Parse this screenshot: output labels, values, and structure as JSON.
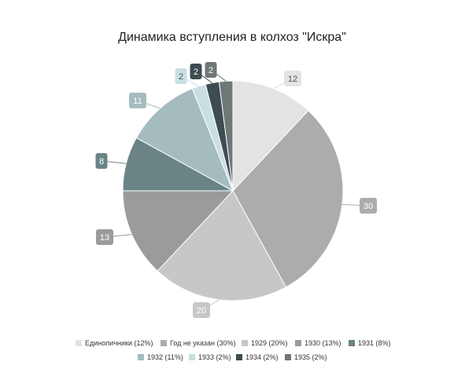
{
  "chart_data": {
    "type": "pie",
    "title": "Динамика вступления в колхоз \"Искра\"",
    "slices": [
      {
        "name": "Единоличники",
        "value": 12,
        "percent": "12%",
        "color": "#e3e3e3",
        "label_text_color": "#555555"
      },
      {
        "name": "Год не указан",
        "value": 30,
        "percent": "30%",
        "color": "#acacac",
        "label_text_color": "#ffffff"
      },
      {
        "name": "1929",
        "value": 20,
        "percent": "20%",
        "color": "#c7c7c7",
        "label_text_color": "#ffffff"
      },
      {
        "name": "1930",
        "value": 13,
        "percent": "13%",
        "color": "#9b9b9b",
        "label_text_color": "#ffffff"
      },
      {
        "name": "1931",
        "value": 8,
        "percent": "8%",
        "color": "#6a8485",
        "label_text_color": "#ffffff"
      },
      {
        "name": "1932",
        "value": 11,
        "percent": "11%",
        "color": "#a5bcbf",
        "label_text_color": "#ffffff"
      },
      {
        "name": "1933",
        "value": 2,
        "percent": "2%",
        "color": "#c9dfe2",
        "label_text_color": "#555555"
      },
      {
        "name": "1934",
        "value": 2,
        "percent": "2%",
        "color": "#3d4c51",
        "label_text_color": "#ffffff"
      },
      {
        "name": "1935",
        "value": 2,
        "percent": "2%",
        "color": "#6f7779",
        "label_text_color": "#ffffff"
      }
    ],
    "legend_position": "bottom"
  }
}
